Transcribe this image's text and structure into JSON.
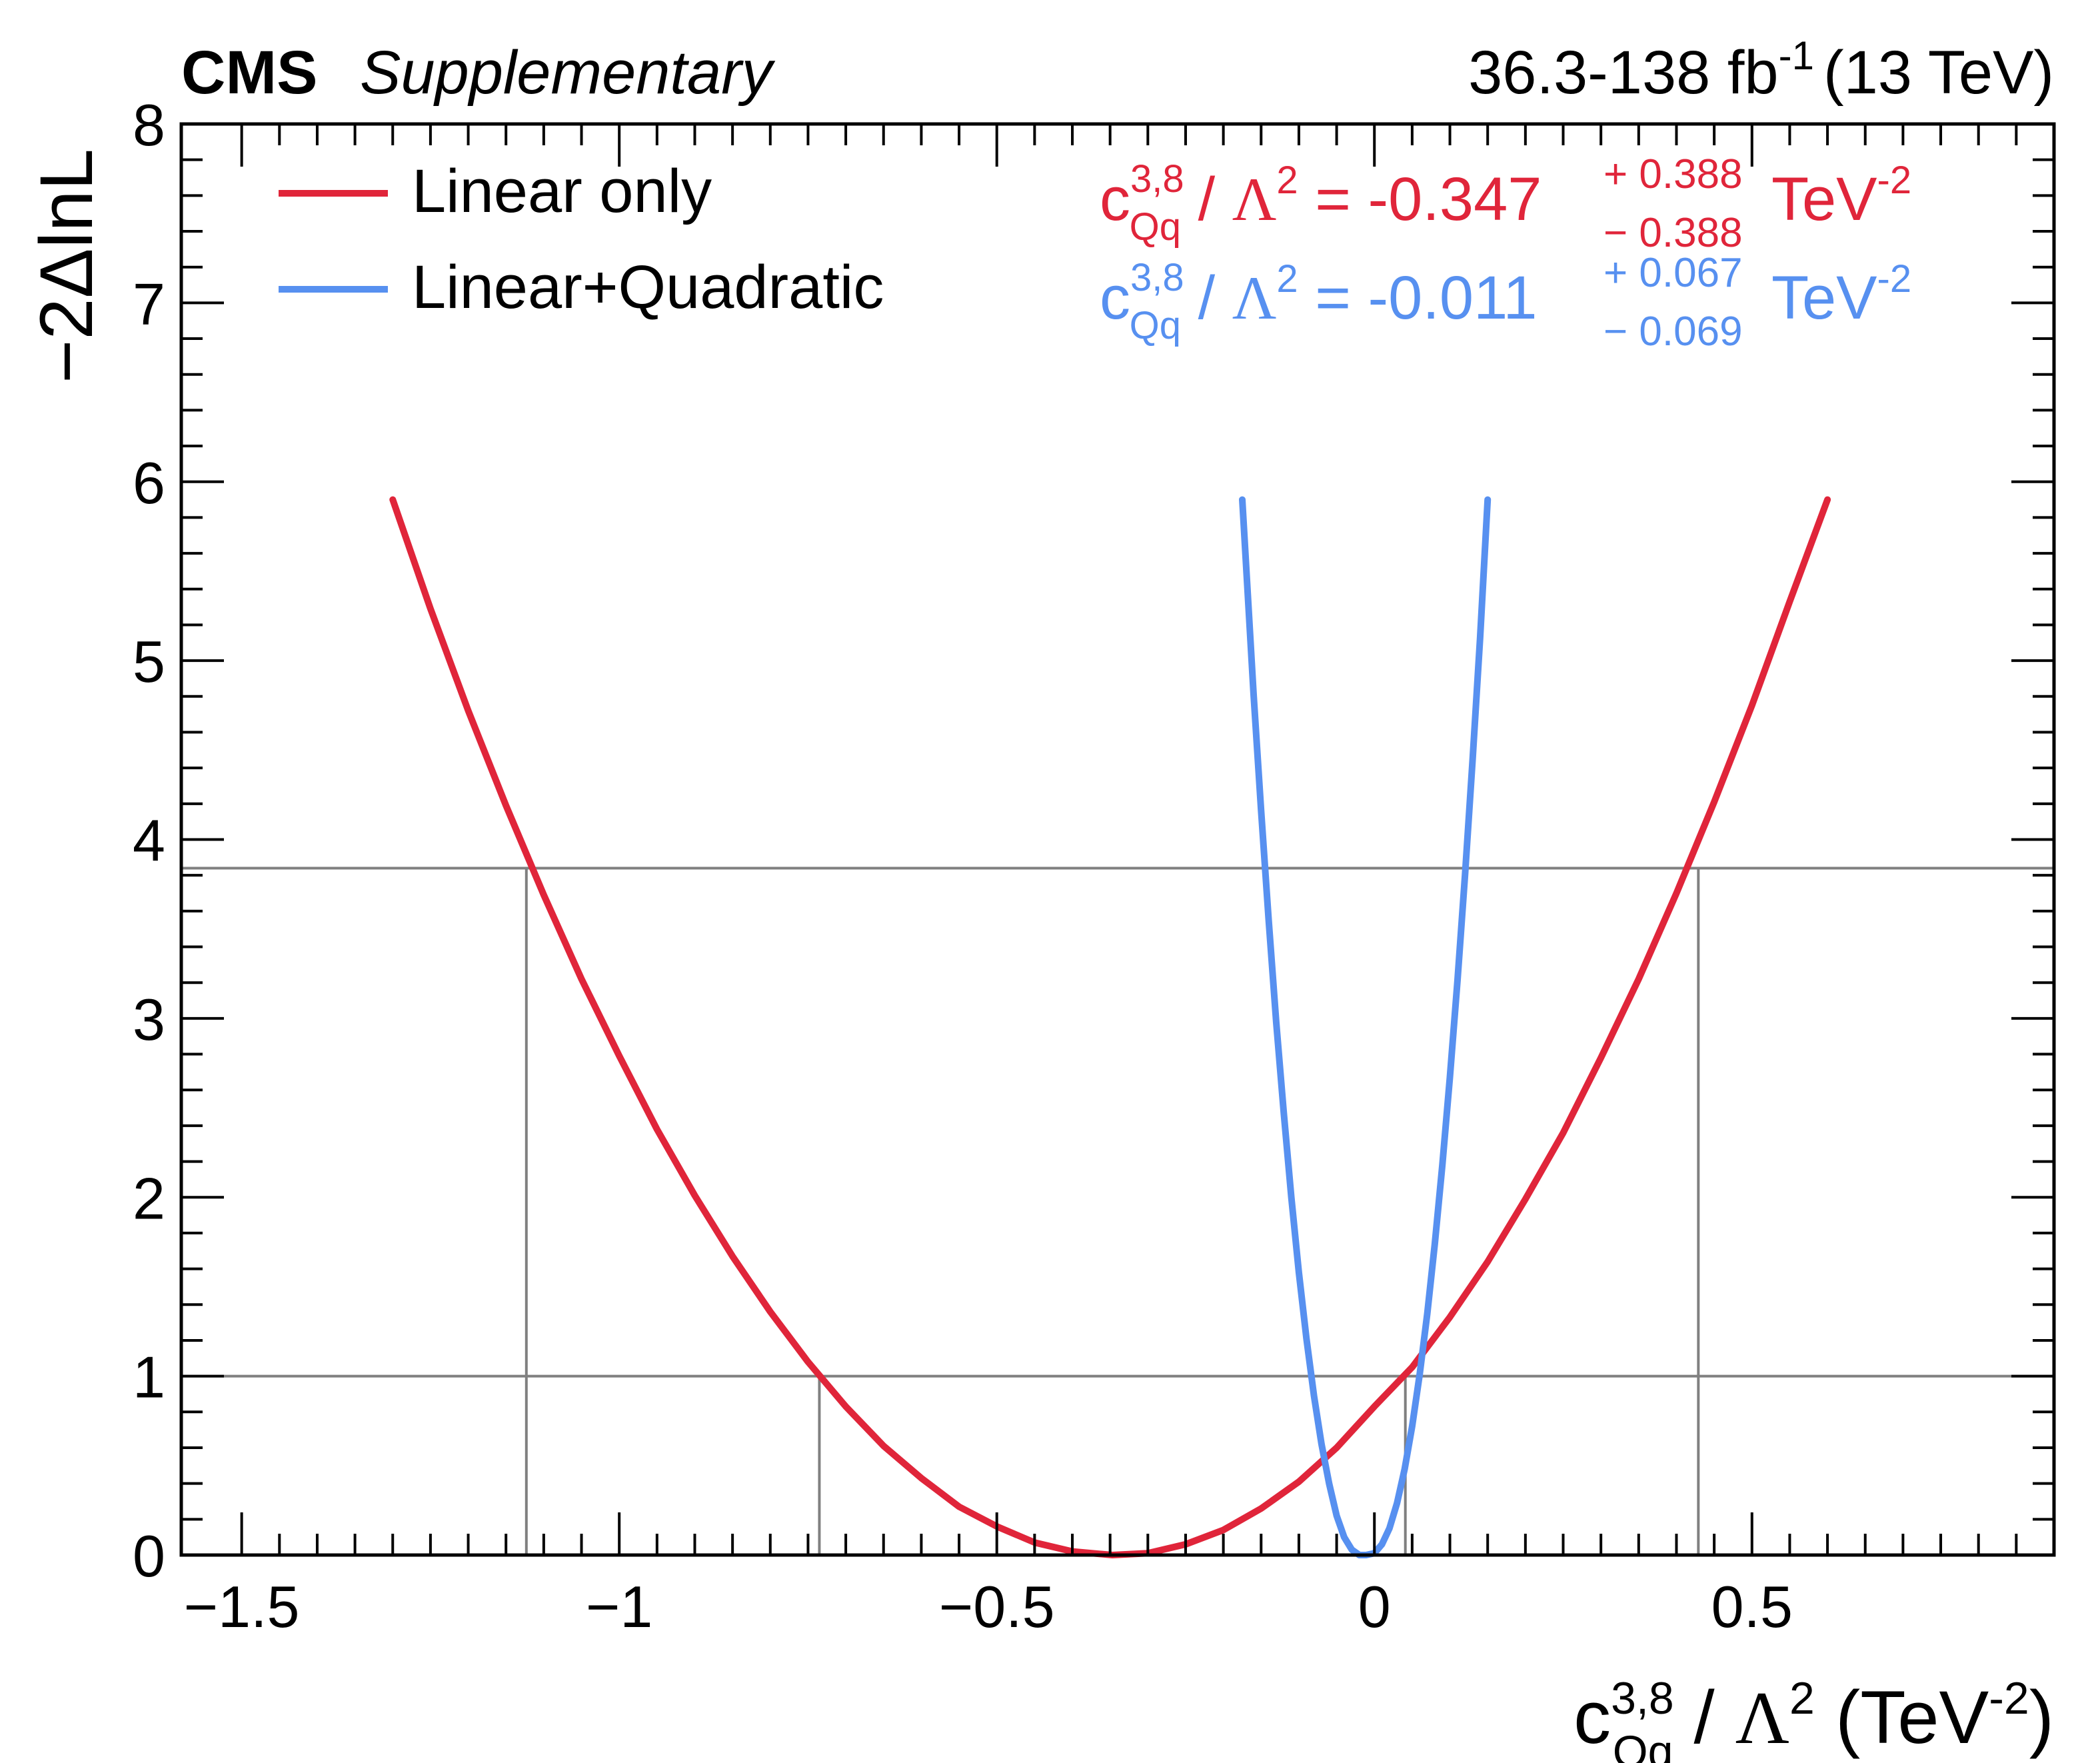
{
  "header": {
    "experiment": "CMS",
    "tag": "Supplementary",
    "lumi_prefix": "36.3-138 fb",
    "lumi_exp": "-1",
    "energy": "(13 TeV)"
  },
  "colors": {
    "linear": "#e0253a",
    "quadratic": "#5790f0",
    "reference": "#808080"
  },
  "chart_data": {
    "type": "line",
    "title": "",
    "xlabel": {
      "sym": "c",
      "sup": "3,8",
      "sub": "Qq",
      "sep": " / ",
      "lambda": "Λ",
      "lambda_sup": "2",
      "unit": " (TeV",
      "unit_sup": "-2",
      "unit_close": ")"
    },
    "ylabel": "−2ΔlnL",
    "xlim": [
      -1.58,
      0.9
    ],
    "ylim": [
      0,
      8
    ],
    "x_ticks": [
      {
        "value": -1.5,
        "label": "−1.5"
      },
      {
        "value": -1.0,
        "label": "−1"
      },
      {
        "value": -0.5,
        "label": "−0.5"
      },
      {
        "value": 0.0,
        "label": "0"
      },
      {
        "value": 0.5,
        "label": "0.5"
      }
    ],
    "y_ticks": [
      {
        "value": 0,
        "label": "0"
      },
      {
        "value": 1,
        "label": "1"
      },
      {
        "value": 2,
        "label": "2"
      },
      {
        "value": 3,
        "label": "3"
      },
      {
        "value": 4,
        "label": "4"
      },
      {
        "value": 5,
        "label": "5"
      },
      {
        "value": 6,
        "label": "6"
      },
      {
        "value": 7,
        "label": "7"
      },
      {
        "value": 8,
        "label": "8"
      }
    ],
    "reference_lines": {
      "horizontal": [
        1.0,
        3.84
      ],
      "vertical": [
        {
          "x": -1.123,
          "y": 3.84
        },
        {
          "x": -0.735,
          "y": 1.0
        },
        {
          "x": 0.041,
          "y": 1.0
        },
        {
          "x": 0.429,
          "y": 3.84
        }
      ]
    },
    "series": [
      {
        "name": "Linear only",
        "minimum": -0.347,
        "sigma": 0.388,
        "y_cap": 5.9,
        "points": [
          [
            -1.3,
            5.9
          ],
          [
            -1.25,
            5.29
          ],
          [
            -1.2,
            4.72
          ],
          [
            -1.15,
            4.19
          ],
          [
            -1.1,
            3.69
          ],
          [
            -1.05,
            3.22
          ],
          [
            -1.0,
            2.79
          ],
          [
            -0.95,
            2.38
          ],
          [
            -0.9,
            2.01
          ],
          [
            -0.85,
            1.67
          ],
          [
            -0.8,
            1.36
          ],
          [
            -0.75,
            1.08
          ],
          [
            -0.7,
            0.83
          ],
          [
            -0.65,
            0.61
          ],
          [
            -0.6,
            0.43
          ],
          [
            -0.55,
            0.27
          ],
          [
            -0.5,
            0.16
          ],
          [
            -0.45,
            0.07
          ],
          [
            -0.4,
            0.02
          ],
          [
            -0.347,
            0.0
          ],
          [
            -0.3,
            0.01
          ],
          [
            -0.25,
            0.06
          ],
          [
            -0.2,
            0.14
          ],
          [
            -0.15,
            0.26
          ],
          [
            -0.1,
            0.41
          ],
          [
            -0.05,
            0.6
          ],
          [
            0.0,
            0.83
          ],
          [
            0.05,
            1.05
          ],
          [
            0.1,
            1.33
          ],
          [
            0.15,
            1.64
          ],
          [
            0.2,
            1.99
          ],
          [
            0.25,
            2.36
          ],
          [
            0.3,
            2.78
          ],
          [
            0.35,
            3.22
          ],
          [
            0.4,
            3.7
          ],
          [
            0.45,
            4.21
          ],
          [
            0.5,
            4.75
          ],
          [
            0.55,
            5.33
          ],
          [
            0.6,
            5.9
          ]
        ]
      },
      {
        "name": "Linear+Quadratic",
        "minimum": -0.011,
        "sigma_plus": 0.067,
        "sigma_minus": 0.069,
        "y_cap": 5.9,
        "points": [
          [
            -0.175,
            5.9
          ],
          [
            -0.16,
            4.81
          ],
          [
            -0.15,
            4.16
          ],
          [
            -0.14,
            3.55
          ],
          [
            -0.13,
            2.98
          ],
          [
            -0.12,
            2.47
          ],
          [
            -0.11,
            2.0
          ],
          [
            -0.1,
            1.58
          ],
          [
            -0.09,
            1.21
          ],
          [
            -0.08,
            0.89
          ],
          [
            -0.07,
            0.62
          ],
          [
            -0.06,
            0.4
          ],
          [
            -0.05,
            0.22
          ],
          [
            -0.04,
            0.1
          ],
          [
            -0.03,
            0.03
          ],
          [
            -0.02,
            0.0
          ],
          [
            -0.011,
            0.0
          ],
          [
            0.0,
            0.01
          ],
          [
            0.01,
            0.06
          ],
          [
            0.02,
            0.15
          ],
          [
            0.03,
            0.29
          ],
          [
            0.04,
            0.48
          ],
          [
            0.05,
            0.72
          ],
          [
            0.06,
            1.01
          ],
          [
            0.07,
            1.35
          ],
          [
            0.08,
            1.74
          ],
          [
            0.09,
            2.18
          ],
          [
            0.1,
            2.67
          ],
          [
            0.11,
            3.21
          ],
          [
            0.12,
            3.8
          ],
          [
            0.13,
            4.44
          ],
          [
            0.14,
            5.13
          ],
          [
            0.15,
            5.9
          ]
        ]
      }
    ],
    "legend": {
      "position": "top-left"
    },
    "annotations": [
      {
        "series": "Linear only",
        "sym": "c",
        "sup": "3,8",
        "sub": "Qq",
        "sep": " / ",
        "lambda": "Λ",
        "lambda_sup": "2",
        "value": " = -0.347",
        "err_up": "+ 0.388",
        "err_down": "− 0.388",
        "unit": "TeV",
        "unit_sup": "-2"
      },
      {
        "series": "Linear+Quadratic",
        "sym": "c",
        "sup": "3,8",
        "sub": "Qq",
        "sep": " / ",
        "lambda": "Λ",
        "lambda_sup": "2",
        "value": " = -0.011",
        "err_up": "+ 0.067",
        "err_down": "− 0.069",
        "unit": "TeV",
        "unit_sup": "-2"
      }
    ]
  }
}
